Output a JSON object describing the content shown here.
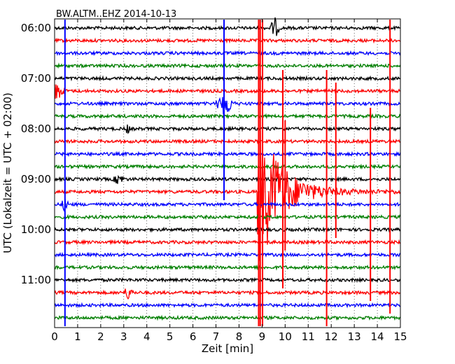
{
  "chart_data": {
    "type": "line",
    "title": "BW.ALTM..EHZ 2014-10-13",
    "xlabel": "Zeit  [min]",
    "ylabel": "UTC (Lokalzeit = UTC + 02:00)",
    "xlim": [
      0,
      15
    ],
    "x_ticks": [
      "0",
      "1",
      "2",
      "3",
      "4",
      "5",
      "6",
      "7",
      "8",
      "9",
      "10",
      "11",
      "12",
      "13",
      "14",
      "15"
    ],
    "y_ticks": [
      "06:00",
      "07:00",
      "08:00",
      "09:00",
      "10:00",
      "11:00"
    ],
    "grid": true,
    "trace_cycle": [
      "#000000",
      "#ff0000",
      "#0000ff",
      "#008000"
    ],
    "traces_count": 24,
    "events": [
      {
        "trace": 0,
        "x": 9.55,
        "amp": 14,
        "dur": 0.25,
        "kind": "burst"
      },
      {
        "trace": 5,
        "x": 0.05,
        "amp": 12,
        "dur": 0.5,
        "kind": "burst"
      },
      {
        "trace": 6,
        "x": 7.4,
        "amp": 18,
        "dur": 0.45,
        "kind": "burst"
      },
      {
        "trace": 8,
        "x": 3.15,
        "amp": 7,
        "dur": 0.15,
        "kind": "burst"
      },
      {
        "trace": 12,
        "x": 2.8,
        "amp": 7,
        "dur": 0.3,
        "kind": "burst"
      },
      {
        "trace": 13,
        "x": 8.8,
        "amp": 120,
        "dur": 5.9,
        "kind": "quake"
      },
      {
        "trace": 14,
        "x": 0.45,
        "amp": 9,
        "dur": 0.2,
        "kind": "burst"
      },
      {
        "trace": 21,
        "x": 3.2,
        "amp": 9,
        "dur": 0.25,
        "kind": "burst"
      }
    ],
    "spikes": [
      {
        "x": 0.45,
        "from_trace": 0,
        "to_trace": 23,
        "color": "#0000ff"
      },
      {
        "x": 7.35,
        "from_trace": 0,
        "to_trace": 13,
        "color": "#0000ff"
      },
      {
        "x": 8.85,
        "from_trace": 0,
        "to_trace": 23,
        "color": "#ff0000"
      },
      {
        "x": 8.92,
        "from_trace": 0,
        "to_trace": 23,
        "color": "#ff0000"
      },
      {
        "x": 9.02,
        "from_trace": 0,
        "to_trace": 23,
        "color": "#ff0000"
      },
      {
        "x": 9.9,
        "from_trace": 4,
        "to_trace": 20,
        "color": "#ff0000"
      },
      {
        "x": 10.0,
        "from_trace": 8,
        "to_trace": 17,
        "color": "#ff0000"
      },
      {
        "x": 11.8,
        "from_trace": 4,
        "to_trace": 23,
        "color": "#ff0000"
      },
      {
        "x": 12.2,
        "from_trace": 5,
        "to_trace": 16,
        "color": "#ff0000"
      },
      {
        "x": 13.7,
        "from_trace": 7,
        "to_trace": 21,
        "color": "#ff0000"
      },
      {
        "x": 14.55,
        "from_trace": 0,
        "to_trace": 22,
        "color": "#ff0000"
      }
    ]
  }
}
